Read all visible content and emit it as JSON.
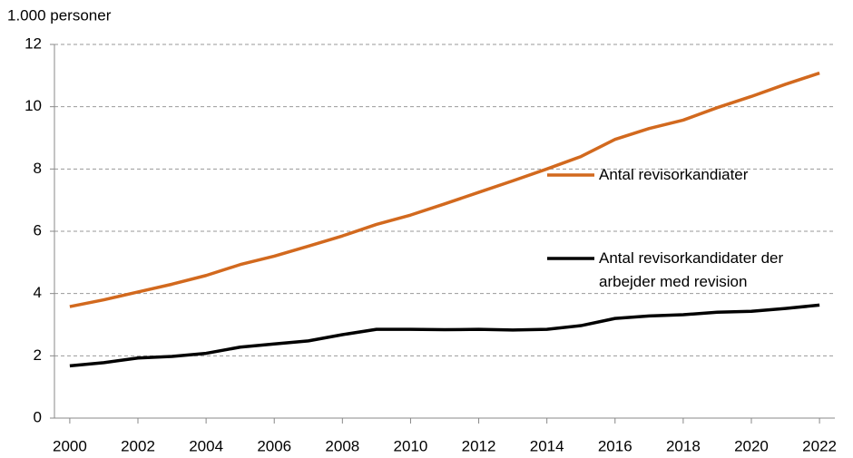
{
  "chart_data": {
    "type": "line",
    "y_axis_label": "1.000 personer",
    "x": [
      2000,
      2001,
      2002,
      2003,
      2004,
      2005,
      2006,
      2007,
      2008,
      2009,
      2010,
      2011,
      2012,
      2013,
      2014,
      2015,
      2016,
      2017,
      2018,
      2019,
      2020,
      2021,
      2022
    ],
    "series": [
      {
        "name": "Antal revisorkandiater",
        "color": "#d2691e",
        "values": [
          3.58,
          3.8,
          4.05,
          4.3,
          4.58,
          4.93,
          5.2,
          5.52,
          5.85,
          6.22,
          6.52,
          6.88,
          7.25,
          7.62,
          8.0,
          8.4,
          8.95,
          9.3,
          9.57,
          9.97,
          10.33,
          10.72,
          11.08
        ]
      },
      {
        "name": "Antal revisorkandidater der arbejder med revision",
        "color": "#000000",
        "values": [
          1.68,
          1.78,
          1.93,
          1.98,
          2.08,
          2.28,
          2.38,
          2.48,
          2.68,
          2.85,
          2.85,
          2.84,
          2.85,
          2.83,
          2.85,
          2.97,
          3.2,
          3.28,
          3.32,
          3.4,
          3.43,
          3.52,
          3.63
        ]
      }
    ],
    "xlim": [
      1999.55,
      2022.45
    ],
    "xticks": [
      2000,
      2002,
      2004,
      2006,
      2008,
      2010,
      2012,
      2014,
      2016,
      2018,
      2020,
      2022
    ],
    "ylim": [
      0,
      12
    ],
    "yticks": [
      0,
      2,
      4,
      6,
      8,
      10,
      12
    ],
    "grid": true
  }
}
